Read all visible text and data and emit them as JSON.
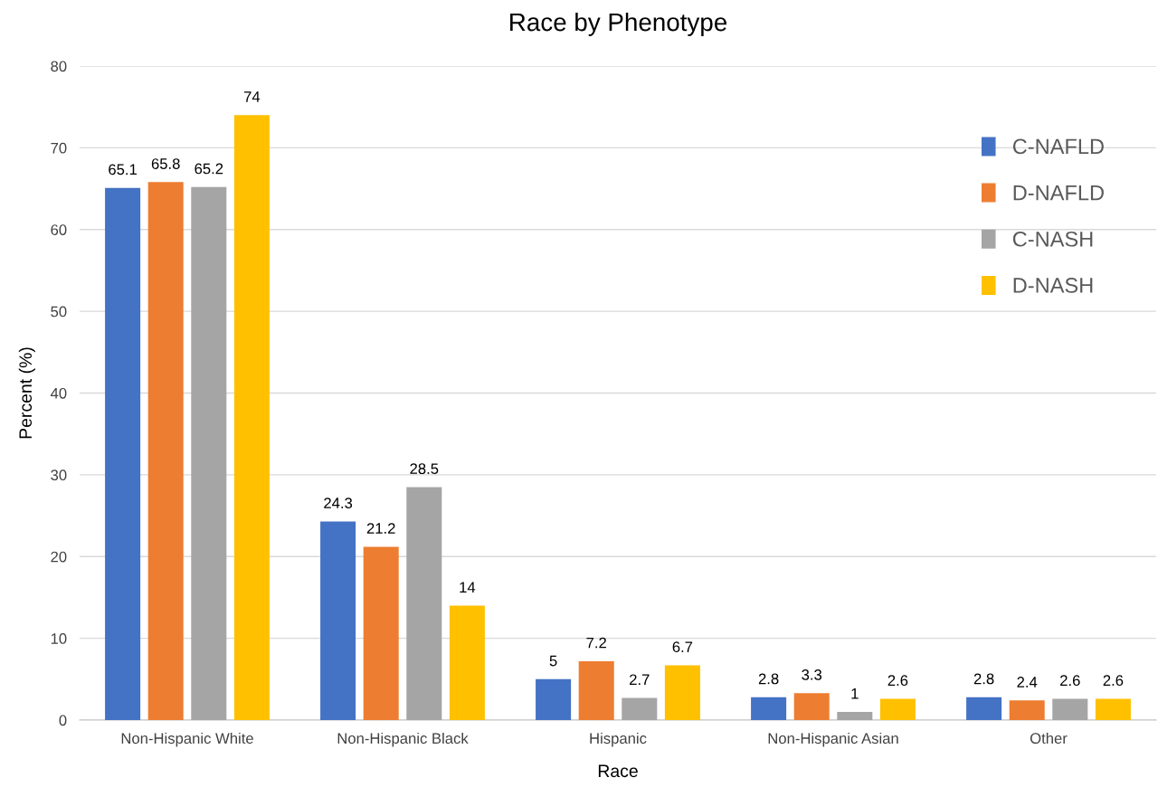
{
  "chart_data": {
    "type": "bar",
    "title": "Race by Phenotype",
    "xlabel": "Race",
    "ylabel": "Percent (%)",
    "categories": [
      "Non-Hispanic White",
      "Non-Hispanic Black",
      "Hispanic",
      "Non-Hispanic Asian",
      "Other"
    ],
    "series": [
      {
        "name": "C-NAFLD",
        "color": "#4472c4",
        "values": [
          65.1,
          24.3,
          5,
          2.8,
          2.8
        ]
      },
      {
        "name": "D-NAFLD",
        "color": "#ed7d31",
        "values": [
          65.8,
          21.2,
          7.2,
          3.3,
          2.4
        ]
      },
      {
        "name": "C-NASH",
        "color": "#a5a5a5",
        "values": [
          65.2,
          28.5,
          2.7,
          1,
          2.6
        ]
      },
      {
        "name": "D-NASH",
        "color": "#ffc000",
        "values": [
          74,
          14,
          6.7,
          2.6,
          2.6
        ]
      }
    ],
    "ylim": [
      0,
      80
    ],
    "yticks": [
      0,
      10,
      20,
      30,
      40,
      50,
      60,
      70,
      80
    ],
    "grid": "y",
    "legend": "top right",
    "data_labels": true
  }
}
